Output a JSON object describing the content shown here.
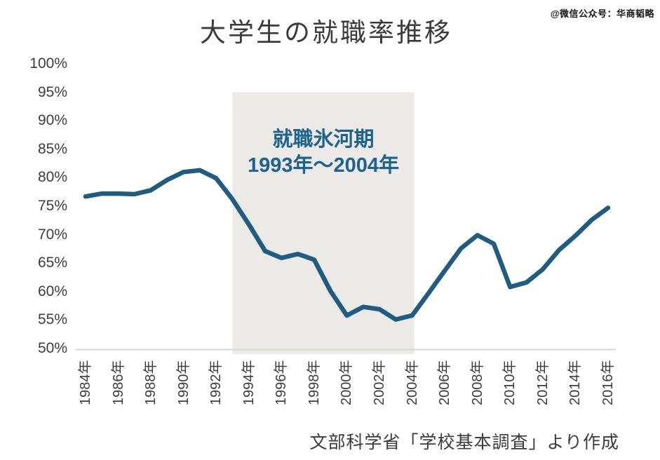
{
  "watermark": "@微信公众号：华商韬略",
  "source_note": "文部科学省「学校基本調査」より作成",
  "annotation": {
    "line1": "就職氷河期",
    "line2": "1993年～2004年"
  },
  "colors": {
    "line": "#1F5C80",
    "annotation_text": "#1D6290",
    "highlight_fill": "#EBEAE6",
    "axis_line": "#D6D6D6",
    "title_text": "#3B3B3B",
    "tick_text": "#3D3D3D",
    "background": "#FFFFFF"
  },
  "chart_data": {
    "type": "line",
    "title": "大学生の就職率推移",
    "xlabel": "",
    "ylabel": "",
    "grid": false,
    "legend": "none",
    "ylim": [
      50,
      100
    ],
    "x": [
      1984,
      1985,
      1986,
      1987,
      1988,
      1989,
      1990,
      1991,
      1992,
      1993,
      1994,
      1995,
      1996,
      1997,
      1998,
      1999,
      2000,
      2001,
      2002,
      2003,
      2004,
      2005,
      2006,
      2007,
      2008,
      2009,
      2010,
      2011,
      2012,
      2013,
      2014,
      2015,
      2016
    ],
    "values": [
      76.7,
      77.2,
      77.2,
      77.1,
      77.8,
      79.6,
      81.0,
      81.3,
      79.9,
      76.2,
      71.8,
      67.1,
      65.9,
      66.6,
      65.6,
      60.1,
      55.8,
      57.3,
      56.9,
      55.1,
      55.8,
      59.7,
      63.7,
      67.6,
      69.9,
      68.4,
      60.8,
      61.6,
      63.9,
      67.3,
      69.8,
      72.6,
      74.7
    ],
    "x_tick_labels": [
      "1984年",
      "1986年",
      "1988年",
      "1990年",
      "1992年",
      "1994年",
      "1996年",
      "1998年",
      "2000年",
      "2002年",
      "2004年",
      "2006年",
      "2008年",
      "2010年",
      "2012年",
      "2014年",
      "2016年"
    ],
    "y_tick_labels": [
      "100%",
      "95%",
      "90%",
      "85%",
      "80%",
      "75%",
      "70%",
      "65%",
      "60%",
      "55%",
      "50%"
    ],
    "highlight_region": {
      "label": "就職氷河期",
      "range_label": "1993年～2004年",
      "x_start": 1993,
      "x_end": 2004,
      "y_top": 95
    }
  }
}
